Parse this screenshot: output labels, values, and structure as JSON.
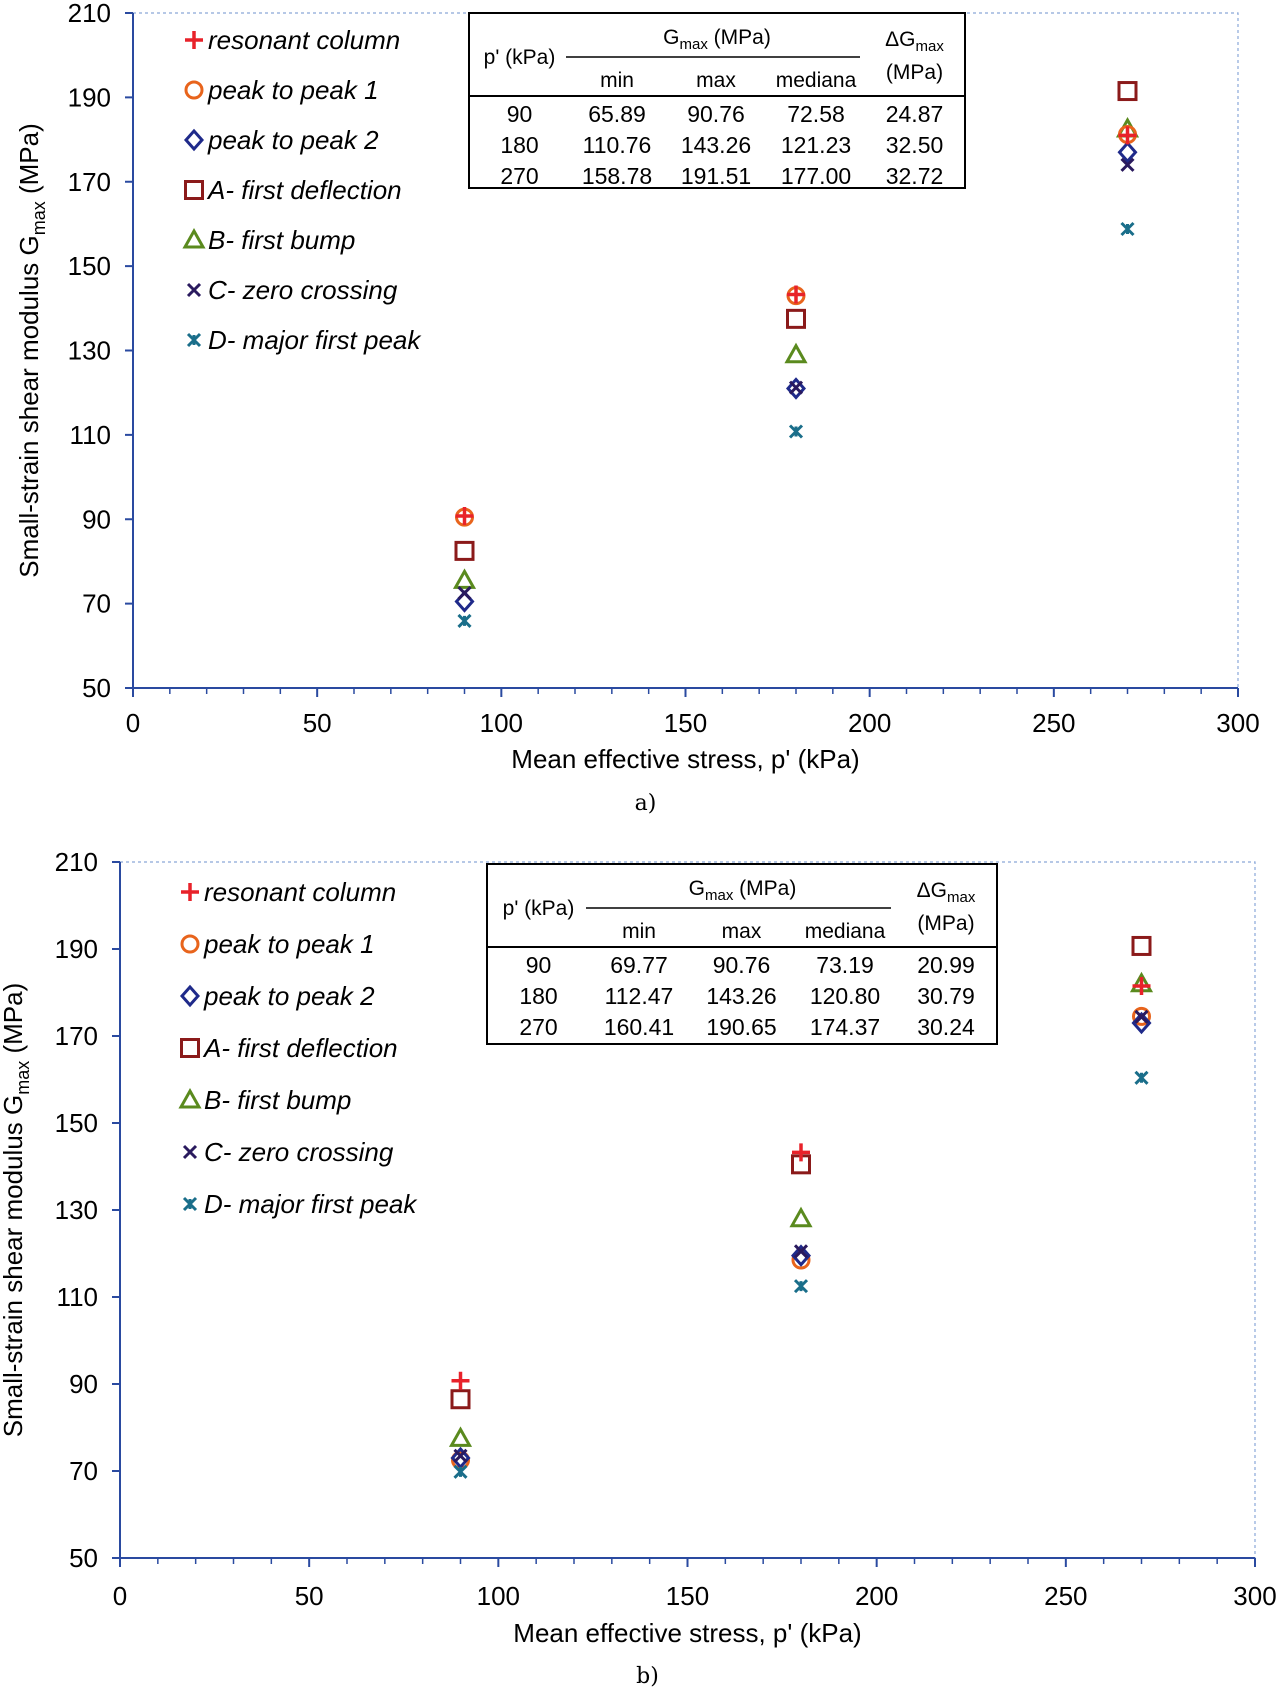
{
  "charts": [
    {
      "caption": "a)",
      "xlabel": "Mean effective stress, p' (kPa)",
      "ylabel_main": "Small-strain shear modulus G",
      "ylabel_sub": "max",
      "ylabel_tail": " (MPa)",
      "table": {
        "col_p": "p' (kPa)",
        "gmax_main": "G",
        "gmax_sub": "max",
        "gmax_tail": " (MPa)",
        "delta_main": "ΔG",
        "delta_sub": "max",
        "delta_unit": "(MPa)",
        "sub_headers": [
          "min",
          "max",
          "mediana"
        ],
        "rows": [
          [
            "90",
            "65.89",
            "90.76",
            "72.58",
            "24.87"
          ],
          [
            "180",
            "110.76",
            "143.26",
            "121.23",
            "32.50"
          ],
          [
            "270",
            "158.78",
            "191.51",
            "177.00",
            "32.72"
          ]
        ]
      }
    },
    {
      "caption": "b)",
      "xlabel": "Mean effective stress, p' (kPa)",
      "ylabel_main": "Small-strain shear modulus G",
      "ylabel_sub": "max",
      "ylabel_tail": " (MPa)",
      "table": {
        "col_p": "p' (kPa)",
        "gmax_main": "G",
        "gmax_sub": "max",
        "gmax_tail": " (MPa)",
        "delta_main": "ΔG",
        "delta_sub": "max",
        "delta_unit": "(MPa)",
        "sub_headers": [
          "min",
          "max",
          "mediana"
        ],
        "rows": [
          [
            "90",
            "69.77",
            "90.76",
            "73.19",
            "20.99"
          ],
          [
            "180",
            "112.47",
            "143.26",
            "120.80",
            "30.79"
          ],
          [
            "270",
            "160.41",
            "190.65",
            "174.37",
            "30.24"
          ]
        ]
      }
    }
  ],
  "chart_data": [
    {
      "type": "scatter",
      "title": "",
      "caption": "a)",
      "xlabel": "Mean effective stress, p' (kPa)",
      "ylabel": "Small-strain shear modulus Gmax (MPa)",
      "xlim": [
        0,
        300
      ],
      "ylim": [
        50,
        210
      ],
      "xticks": [
        0,
        50,
        100,
        150,
        200,
        250,
        300
      ],
      "yticks": [
        50,
        70,
        90,
        110,
        130,
        150,
        170,
        190,
        210
      ],
      "legend_position": "top-left",
      "series": [
        {
          "name": "resonant column",
          "marker": "plus",
          "color": "#e8222a",
          "x": [
            90,
            180,
            270
          ],
          "y": [
            90.76,
            143.26,
            181.0
          ]
        },
        {
          "name": "peak to peak 1",
          "marker": "circle",
          "color": "#e8641c",
          "x": [
            90,
            180,
            270
          ],
          "y": [
            90.5,
            143.0,
            181.2
          ]
        },
        {
          "name": "peak to peak 2",
          "marker": "diamond",
          "color": "#1f2a8a",
          "x": [
            90,
            180,
            270
          ],
          "y": [
            70.5,
            121.0,
            177.0
          ]
        },
        {
          "name": "A- first deflection",
          "marker": "square",
          "color": "#8b1a1a",
          "x": [
            90,
            180,
            270
          ],
          "y": [
            82.5,
            137.5,
            191.5
          ]
        },
        {
          "name": "B- first bump",
          "marker": "triangle",
          "color": "#5a8a1e",
          "x": [
            90,
            180,
            270
          ],
          "y": [
            75.5,
            129.0,
            182.5
          ]
        },
        {
          "name": "C- zero crossing",
          "marker": "x",
          "color": "#2a1a5e",
          "x": [
            90,
            180,
            270
          ],
          "y": [
            72.5,
            121.2,
            174.0
          ]
        },
        {
          "name": "D- major first peak",
          "marker": "star",
          "color": "#1a6e8a",
          "x": [
            90,
            180,
            270
          ],
          "y": [
            65.9,
            110.8,
            158.8
          ]
        }
      ]
    },
    {
      "type": "scatter",
      "title": "",
      "caption": "b)",
      "xlabel": "Mean effective stress, p' (kPa)",
      "ylabel": "Small-strain shear modulus Gmax (MPa)",
      "xlim": [
        0,
        300
      ],
      "ylim": [
        50,
        210
      ],
      "xticks": [
        0,
        50,
        100,
        150,
        200,
        250,
        300
      ],
      "yticks": [
        50,
        70,
        90,
        110,
        130,
        150,
        170,
        190,
        210
      ],
      "legend_position": "top-left",
      "series": [
        {
          "name": "resonant column",
          "marker": "plus",
          "color": "#e8222a",
          "x": [
            90,
            180,
            270
          ],
          "y": [
            90.76,
            143.26,
            181.5
          ]
        },
        {
          "name": "peak to peak 1",
          "marker": "circle",
          "color": "#e8641c",
          "x": [
            90,
            180,
            270
          ],
          "y": [
            72.5,
            118.5,
            174.5
          ]
        },
        {
          "name": "peak to peak 2",
          "marker": "diamond",
          "color": "#1f2a8a",
          "x": [
            90,
            180,
            270
          ],
          "y": [
            73.0,
            119.5,
            173.0
          ]
        },
        {
          "name": "A- first deflection",
          "marker": "square",
          "color": "#8b1a1a",
          "x": [
            90,
            180,
            270
          ],
          "y": [
            86.5,
            140.5,
            190.7
          ]
        },
        {
          "name": "B- first bump",
          "marker": "triangle",
          "color": "#5a8a1e",
          "x": [
            90,
            180,
            270
          ],
          "y": [
            77.5,
            128.0,
            182.0
          ]
        },
        {
          "name": "C- zero crossing",
          "marker": "x",
          "color": "#2a1a5e",
          "x": [
            90,
            180,
            270
          ],
          "y": [
            73.5,
            120.5,
            174.4
          ]
        },
        {
          "name": "D- major first peak",
          "marker": "star",
          "color": "#1a6e8a",
          "x": [
            90,
            180,
            270
          ],
          "y": [
            69.8,
            112.5,
            160.4
          ]
        }
      ]
    }
  ]
}
